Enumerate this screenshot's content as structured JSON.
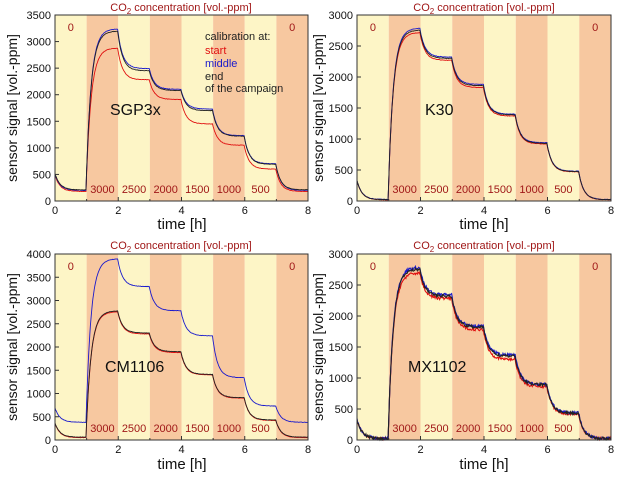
{
  "title_prefix": "CO",
  "title_sub": "2",
  "title_suffix": " concentration [vol.-ppm]",
  "legend": {
    "heading": "calibration at:",
    "start": "start",
    "middle": "middle",
    "end": "end",
    "end2": "of the campaign",
    "colors": {
      "start": "#e01010",
      "middle": "#1a1acc",
      "end": "#222222"
    }
  },
  "colors": {
    "light": "#fdf5c6",
    "dark": "#f7c8a0",
    "title": "#a01818"
  },
  "chart_data": [
    {
      "type": "line",
      "sensor": "SGP3x",
      "xlabel": "time [h]",
      "ylabel": "sensor signal [vol.-ppm]",
      "xlim": [
        0,
        8
      ],
      "ylim": [
        0,
        3500
      ],
      "xticks": [
        0,
        2,
        4,
        6,
        8
      ],
      "yticks": [
        0,
        500,
        1000,
        1500,
        2000,
        2500,
        3000,
        3500
      ],
      "bands": [
        "0",
        "3000",
        "2500",
        "2000",
        "1500",
        "1000",
        "500",
        "0"
      ],
      "series": [
        {
          "name": "start",
          "color": "#e01010",
          "levels": [
            180,
            2880,
            2280,
            1910,
            1450,
            1050,
            600,
            180
          ]
        },
        {
          "name": "middle",
          "color": "#1a1acc",
          "levels": [
            200,
            3240,
            2490,
            2100,
            1730,
            1230,
            700,
            200
          ]
        },
        {
          "name": "end",
          "color": "#222222",
          "levels": [
            210,
            3200,
            2450,
            2080,
            1700,
            1220,
            690,
            210
          ]
        }
      ]
    },
    {
      "type": "line",
      "sensor": "K30",
      "xlabel": "time [h]",
      "ylabel": "sensor signal [vol.-ppm]",
      "xlim": [
        0,
        8
      ],
      "ylim": [
        0,
        3000
      ],
      "xticks": [
        0,
        2,
        4,
        6,
        8
      ],
      "yticks": [
        0,
        500,
        1000,
        1500,
        2000,
        2500,
        3000
      ],
      "bands": [
        "0",
        "3000",
        "2500",
        "2000",
        "1500",
        "1000",
        "500",
        "0"
      ],
      "series": [
        {
          "name": "start",
          "color": "#e01010",
          "levels": [
            20,
            2720,
            2270,
            1830,
            1370,
            920,
            470,
            20
          ]
        },
        {
          "name": "middle",
          "color": "#1a1acc",
          "levels": [
            25,
            2790,
            2320,
            1880,
            1400,
            940,
            480,
            25
          ]
        },
        {
          "name": "end",
          "color": "#222222",
          "levels": [
            22,
            2760,
            2300,
            1860,
            1390,
            930,
            475,
            22
          ]
        }
      ]
    },
    {
      "type": "line",
      "sensor": "CM1106",
      "xlabel": "time [h]",
      "ylabel": "sensor signal [vol.-ppm]",
      "xlim": [
        0,
        8
      ],
      "ylim": [
        0,
        4000
      ],
      "xticks": [
        0,
        2,
        4,
        6,
        8
      ],
      "yticks": [
        0,
        500,
        1000,
        1500,
        2000,
        2500,
        3000,
        3500,
        4000
      ],
      "bands": [
        "0",
        "3000",
        "2500",
        "2000",
        "1500",
        "1000",
        "500",
        "0"
      ],
      "series": [
        {
          "name": "start",
          "color": "#e01010",
          "levels": [
            50,
            2760,
            2280,
            1880,
            1400,
            900,
            420,
            50
          ]
        },
        {
          "name": "middle",
          "color": "#1a1acc",
          "levels": [
            380,
            3900,
            3300,
            2780,
            2240,
            1340,
            730,
            380
          ]
        },
        {
          "name": "end",
          "color": "#222222",
          "levels": [
            60,
            2780,
            2300,
            1900,
            1410,
            910,
            430,
            60
          ]
        }
      ]
    },
    {
      "type": "line",
      "sensor": "MX1102",
      "xlabel": "time [h]",
      "ylabel": "sensor signal [vol.-ppm]",
      "xlim": [
        0,
        8
      ],
      "ylim": [
        0,
        3000
      ],
      "xticks": [
        0,
        2,
        4,
        6,
        8
      ],
      "yticks": [
        0,
        500,
        1000,
        1500,
        2000,
        2500,
        3000
      ],
      "bands": [
        "0",
        "3000",
        "2500",
        "2000",
        "1500",
        "1000",
        "500",
        "0"
      ],
      "series": [
        {
          "name": "start",
          "color": "#e01010",
          "levels": [
            20,
            2700,
            2280,
            1780,
            1300,
            860,
            420,
            20
          ]
        },
        {
          "name": "middle",
          "color": "#1a1acc",
          "levels": [
            25,
            2790,
            2340,
            1840,
            1370,
            900,
            440,
            25
          ]
        },
        {
          "name": "end",
          "color": "#222222",
          "levels": [
            22,
            2760,
            2320,
            1820,
            1350,
            890,
            430,
            22
          ]
        }
      ]
    }
  ]
}
